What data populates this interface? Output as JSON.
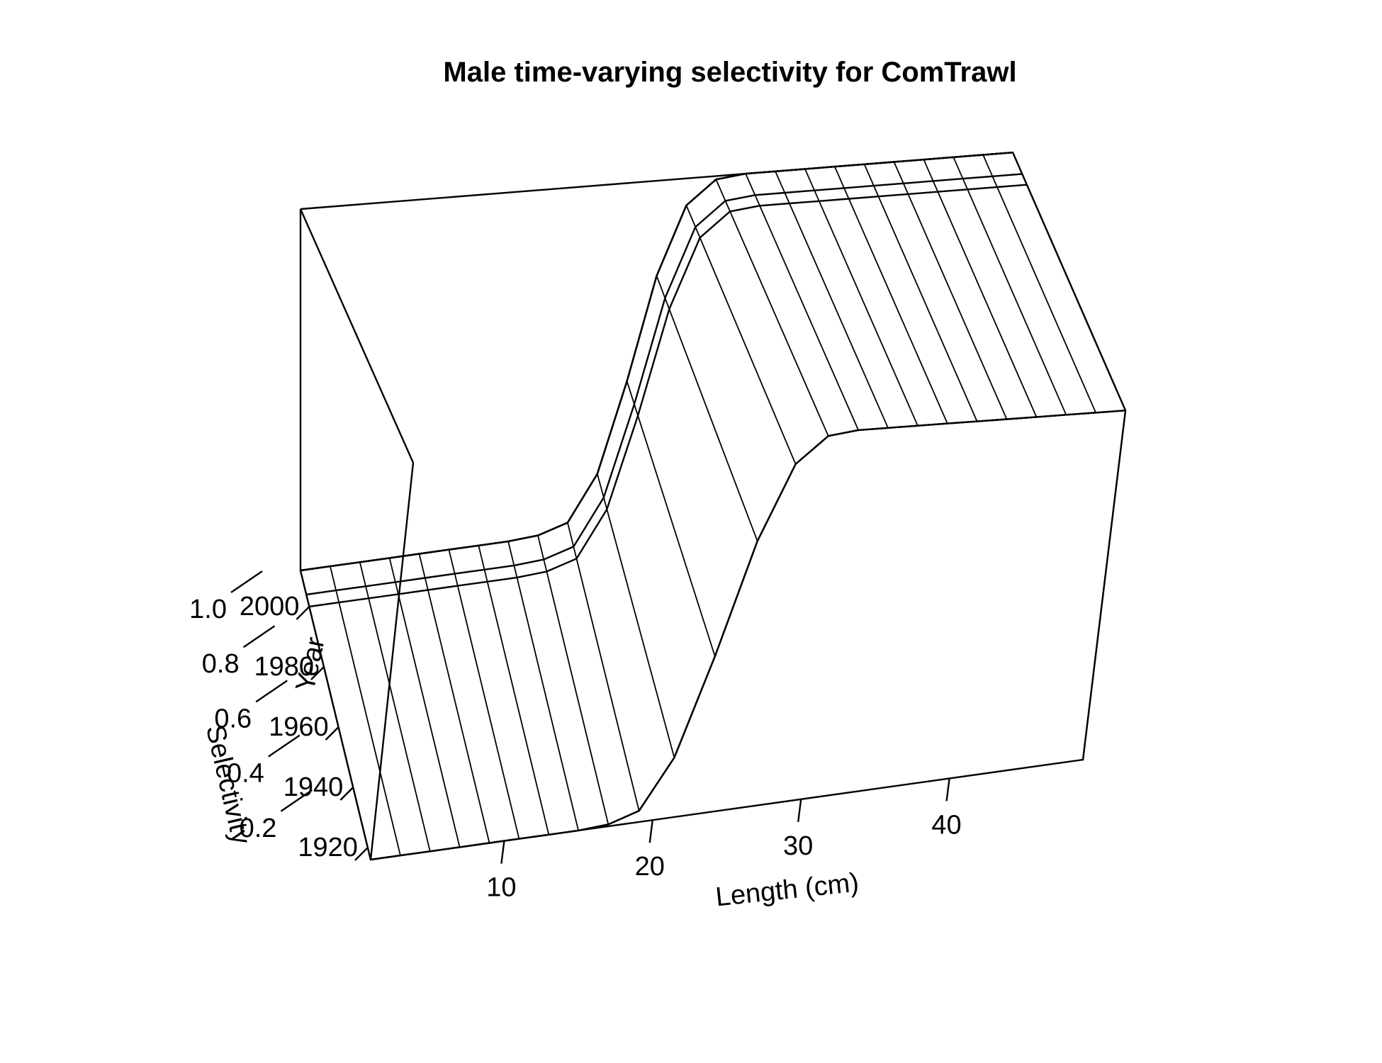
{
  "chart_data": {
    "type": "surface",
    "title": "Male time-varying selectivity for ComTrawl",
    "xlabel": "Length (cm)",
    "ylabel": "Year",
    "zlabel": "Selectivity",
    "x_ticks": [
      "10",
      "20",
      "30",
      "40"
    ],
    "y_ticks": [
      "1920",
      "1940",
      "1960",
      "1980",
      "2000"
    ],
    "z_ticks": [
      "0.2",
      "0.4",
      "0.6",
      "0.8",
      "1.0"
    ],
    "xlim": [
      1,
      49
    ],
    "ylim": [
      1916,
      2012
    ],
    "zlim": [
      0,
      1
    ],
    "length_bins": [
      1,
      3,
      5,
      7,
      9,
      11,
      13,
      15,
      17,
      19,
      21,
      23,
      25,
      27,
      29,
      31,
      33,
      35,
      37,
      39,
      41,
      43,
      45,
      47,
      49
    ],
    "year_breaks": [
      2000,
      2004,
      2012
    ],
    "selectivity_curve": {
      "description_free": true,
      "lengths": [
        1,
        3,
        5,
        7,
        9,
        11,
        13,
        15,
        17,
        19,
        21,
        23,
        25,
        27,
        29,
        31,
        33,
        35,
        37,
        39,
        41,
        43,
        45,
        47,
        49
      ],
      "values": [
        0,
        0,
        0,
        0,
        0,
        0,
        0,
        0,
        0.005,
        0.03,
        0.16,
        0.42,
        0.72,
        0.92,
        0.99,
        1,
        1,
        1,
        1,
        1,
        1,
        1,
        1,
        1,
        1
      ]
    },
    "grid": false
  }
}
